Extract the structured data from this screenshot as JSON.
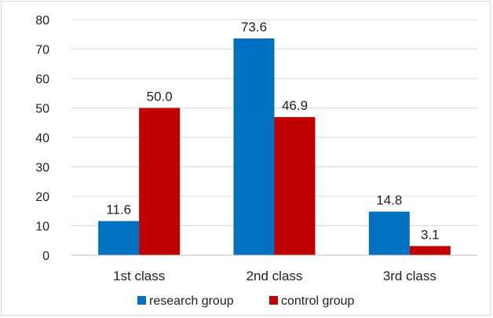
{
  "chart_data": {
    "type": "bar",
    "categories": [
      "1st class",
      "2nd class",
      "3rd class"
    ],
    "series": [
      {
        "name": "research group",
        "values": [
          11.6,
          73.6,
          14.8
        ],
        "labels": [
          "11.6",
          "73.6",
          "14.8"
        ],
        "color": "#0070c0"
      },
      {
        "name": "control group",
        "values": [
          50.0,
          46.9,
          3.1
        ],
        "labels": [
          "50.0",
          "46.9",
          "3.1"
        ],
        "color": "#c00000"
      }
    ],
    "ylim": [
      0,
      80
    ],
    "yticks": [
      "0",
      "10",
      "20",
      "30",
      "40",
      "50",
      "60",
      "70",
      "80"
    ],
    "grid": true,
    "legend_position": "bottom",
    "gridline_color": "#d9d9d9"
  }
}
